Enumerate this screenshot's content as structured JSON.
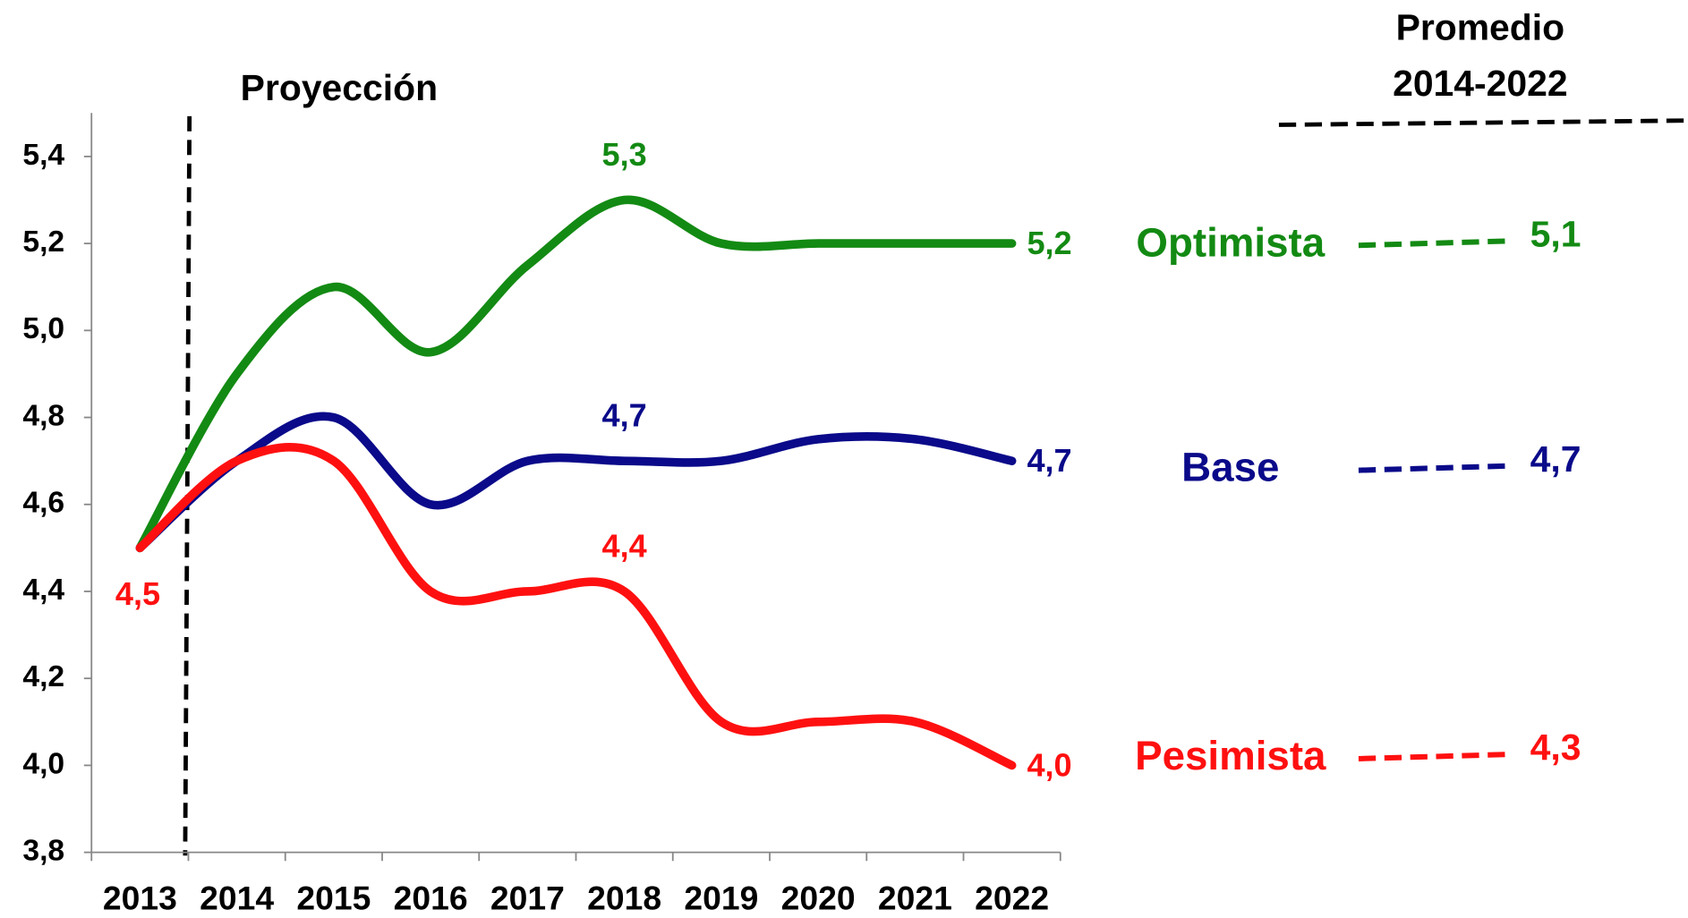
{
  "chart_data": {
    "type": "line",
    "title": "Proyección",
    "categories": [
      "2013",
      "2014",
      "2015",
      "2016",
      "2017",
      "2018",
      "2019",
      "2020",
      "2021",
      "2022"
    ],
    "ylim": [
      3.8,
      5.5
    ],
    "yticks": [
      {
        "value": 3.8,
        "label": "3,8"
      },
      {
        "value": 4.0,
        "label": "4,0"
      },
      {
        "value": 4.2,
        "label": "4,2"
      },
      {
        "value": 4.4,
        "label": "4,4"
      },
      {
        "value": 4.6,
        "label": "4,6"
      },
      {
        "value": 4.8,
        "label": "4,8"
      },
      {
        "value": 5.0,
        "label": "5,0"
      },
      {
        "value": 5.2,
        "label": "5,2"
      },
      {
        "value": 5.4,
        "label": "5,4"
      }
    ],
    "average_title": [
      "Promedio",
      "2014-2022"
    ],
    "series": [
      {
        "name": "Optimista",
        "color": "#138a13",
        "values": [
          4.5,
          4.9,
          5.1,
          4.95,
          5.15,
          5.3,
          5.2,
          5.2,
          5.2,
          5.2
        ],
        "value_labels": [
          null,
          null,
          null,
          null,
          null,
          "5,3",
          null,
          null,
          null,
          "5,2"
        ],
        "average": 5.1,
        "average_label": "5,1"
      },
      {
        "name": "Base",
        "color": "#0a0a8a",
        "values": [
          4.5,
          4.7,
          4.8,
          4.6,
          4.7,
          4.7,
          4.7,
          4.75,
          4.75,
          4.7
        ],
        "value_labels": [
          null,
          null,
          null,
          null,
          null,
          "4,7",
          null,
          null,
          null,
          "4,7"
        ],
        "average": 4.7,
        "average_label": "4,7"
      },
      {
        "name": "Pesimista",
        "color": "#ff1010",
        "values": [
          4.5,
          4.7,
          4.7,
          4.4,
          4.4,
          4.4,
          4.1,
          4.1,
          4.1,
          4.0
        ],
        "value_labels": [
          "4,5",
          null,
          null,
          null,
          null,
          "4,4",
          null,
          null,
          null,
          "4,0"
        ],
        "average": 4.3,
        "average_label": "4,3"
      }
    ]
  }
}
